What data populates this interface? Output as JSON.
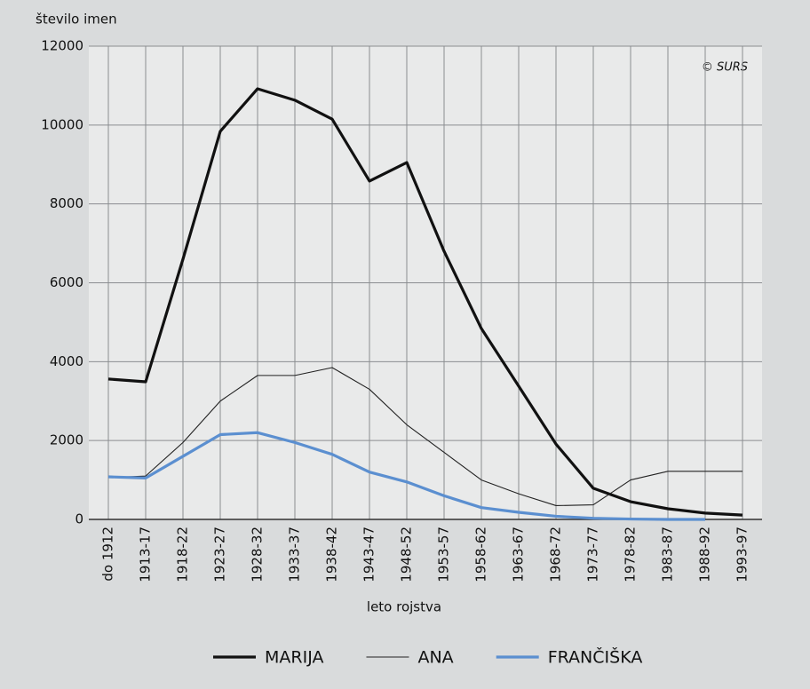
{
  "chart_data": {
    "type": "line",
    "y_label": "število imen",
    "x_label": "leto rojstva",
    "source": "© SURS",
    "categories": [
      "do 1912",
      "1913-17",
      "1918-22",
      "1923-27",
      "1928-32",
      "1933-37",
      "1938-42",
      "1943-47",
      "1948-52",
      "1953-57",
      "1958-62",
      "1963-67",
      "1968-72",
      "1973-77",
      "1978-82",
      "1983-87",
      "1988-92",
      "1993-97"
    ],
    "series": [
      {
        "name": "MARIJA",
        "color": "#111111",
        "line_width": 3.2,
        "values": [
          3560,
          3490,
          6600,
          9840,
          10920,
          10630,
          10150,
          8580,
          9050,
          6800,
          4840,
          3380,
          1910,
          790,
          450,
          270,
          160,
          110
        ]
      },
      {
        "name": "ANA",
        "color": "#222222",
        "line_width": 1.1,
        "values": [
          1060,
          1100,
          1950,
          3000,
          3650,
          3650,
          3850,
          3300,
          2400,
          1700,
          1000,
          650,
          350,
          370,
          1000,
          1220,
          1220,
          1220
        ]
      },
      {
        "name": "FRANČIŠKA",
        "color": "#5b8fd0",
        "line_width": 3.2,
        "values": [
          1080,
          1050,
          1600,
          2150,
          2200,
          1950,
          1650,
          1200,
          950,
          600,
          300,
          180,
          80,
          30,
          10,
          0,
          0,
          null
        ]
      }
    ],
    "ylim": [
      0,
      12000
    ],
    "yticks": [
      0,
      2000,
      4000,
      6000,
      8000,
      10000,
      12000
    ],
    "grid": true
  }
}
